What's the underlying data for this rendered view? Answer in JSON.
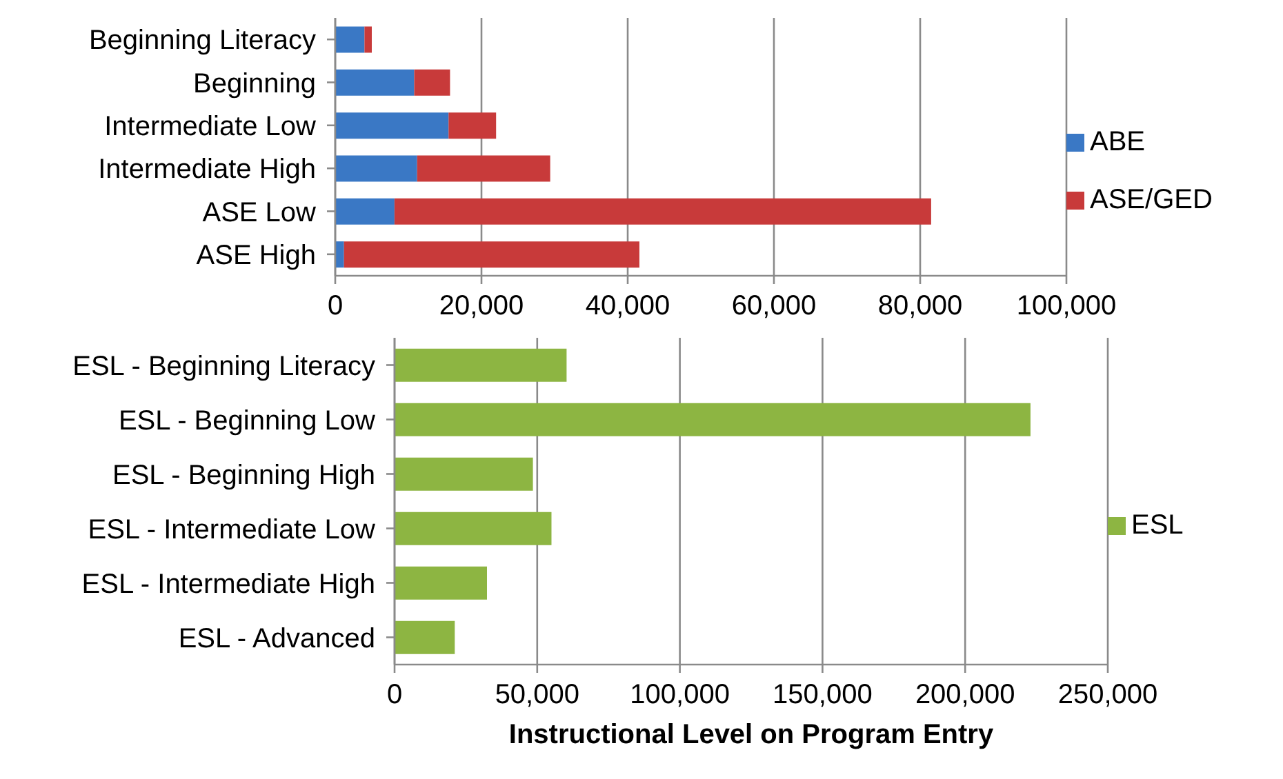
{
  "chart_data": [
    {
      "type": "bar",
      "orientation": "horizontal",
      "stacked": true,
      "categories": [
        "Beginning Literacy",
        "Beginning",
        "Intermediate Low",
        "Intermediate High",
        "ASE Low",
        "ASE High"
      ],
      "series": [
        {
          "name": "ABE",
          "color": "#3a78c5",
          "values": [
            4000,
            10800,
            15500,
            11200,
            8100,
            1200
          ]
        },
        {
          "name": "ASE/GED",
          "color": "#c83a3a",
          "values": [
            1000,
            4900,
            6500,
            18200,
            73400,
            40400
          ]
        }
      ],
      "xlim": [
        0,
        100000
      ],
      "xticks": [
        {
          "value": 0,
          "label": "0"
        },
        {
          "value": 20000,
          "label": "20,000"
        },
        {
          "value": 40000,
          "label": "40,000"
        },
        {
          "value": 60000,
          "label": "60,000"
        },
        {
          "value": 80000,
          "label": "80,000"
        },
        {
          "value": 100000,
          "label": "100,000"
        }
      ],
      "grid": "x",
      "legend": "right"
    },
    {
      "type": "bar",
      "orientation": "horizontal",
      "xlabel": "Instructional Level on Program Entry",
      "categories": [
        "ESL - Beginning Literacy",
        "ESL - Beginning Low",
        "ESL - Beginning High",
        "ESL - Intermediate Low",
        "ESL - Intermediate High",
        "ESL - Advanced"
      ],
      "series": [
        {
          "name": "ESL",
          "color": "#8db542",
          "values": [
            60300,
            222900,
            48500,
            55000,
            32400,
            21100
          ]
        }
      ],
      "xlim": [
        0,
        250000
      ],
      "xticks": [
        {
          "value": 0,
          "label": "0"
        },
        {
          "value": 50000,
          "label": "50,000"
        },
        {
          "value": 100000,
          "label": "100,000"
        },
        {
          "value": 150000,
          "label": "150,000"
        },
        {
          "value": 200000,
          "label": "200,000"
        },
        {
          "value": 250000,
          "label": "250,000"
        }
      ],
      "grid": "x",
      "legend": "right"
    }
  ]
}
